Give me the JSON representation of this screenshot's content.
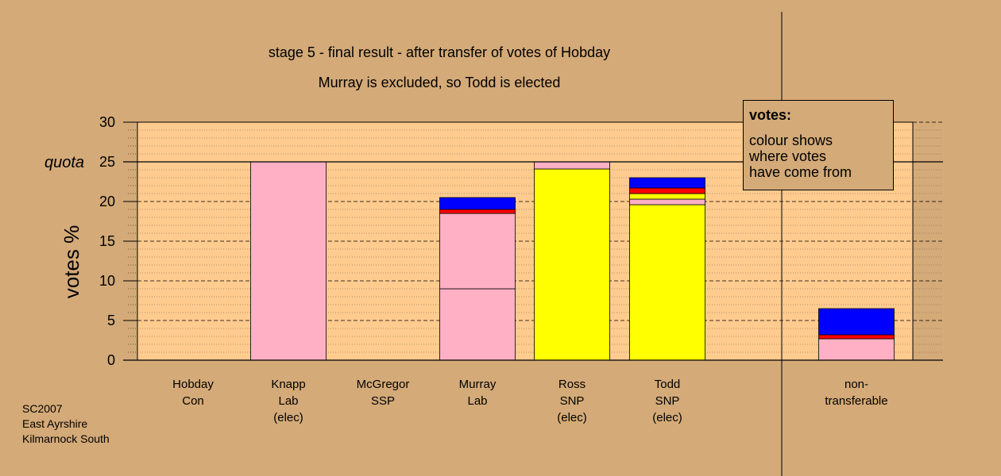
{
  "chart_data": {
    "type": "bar",
    "title": "stage 5 - final result - after transfer of votes of Hobday",
    "subtitle": "Murray is excluded, so Todd is elected",
    "ylabel": "votes %",
    "ylim": [
      0,
      30
    ],
    "yticks": [
      "0",
      "5",
      "10",
      "15",
      "20",
      "25",
      "30"
    ],
    "quota_label": "quota",
    "quota": 25,
    "colors": {
      "Lab": "#ffb0c4",
      "SNP": "#ffff00",
      "Con": "#0000ff",
      "SSP": "#ff0000"
    },
    "categories": [
      {
        "lines": [
          "Hobday",
          "Con"
        ],
        "segments": []
      },
      {
        "lines": [
          "Knapp",
          "Lab",
          "(elec)"
        ],
        "segments": [
          {
            "party": "Lab",
            "value": 25.0
          }
        ]
      },
      {
        "lines": [
          "McGregor",
          "SSP"
        ],
        "segments": []
      },
      {
        "lines": [
          "Murray",
          "Lab"
        ],
        "segments": [
          {
            "party": "Lab",
            "value": 9.0
          },
          {
            "party": "Lab",
            "value": 9.5
          },
          {
            "party": "SSP",
            "value": 0.5
          },
          {
            "party": "Con",
            "value": 1.5
          }
        ]
      },
      {
        "lines": [
          "Ross",
          "SNP",
          "(elec)"
        ],
        "segments": [
          {
            "party": "SNP",
            "value": 24.1
          },
          {
            "party": "Lab",
            "value": 0.9
          }
        ]
      },
      {
        "lines": [
          "Todd",
          "SNP",
          "(elec)"
        ],
        "segments": [
          {
            "party": "SNP",
            "value": 19.6
          },
          {
            "party": "Lab",
            "value": 0.7
          },
          {
            "party": "SNP",
            "value": 0.7
          },
          {
            "party": "SSP",
            "value": 0.7
          },
          {
            "party": "Con",
            "value": 1.3
          }
        ]
      },
      {
        "lines": [
          "non-",
          "transferable"
        ],
        "segments": [
          {
            "party": "Lab",
            "value": 2.7
          },
          {
            "party": "SSP",
            "value": 0.5
          },
          {
            "party": "Con",
            "value": 3.3
          }
        ]
      }
    ]
  },
  "legend": {
    "title": "votes:",
    "lines": [
      "colour shows",
      "where votes",
      "have come from"
    ]
  },
  "note": [
    "SC2007",
    "East Ayrshire",
    "Kilmarnock South"
  ]
}
